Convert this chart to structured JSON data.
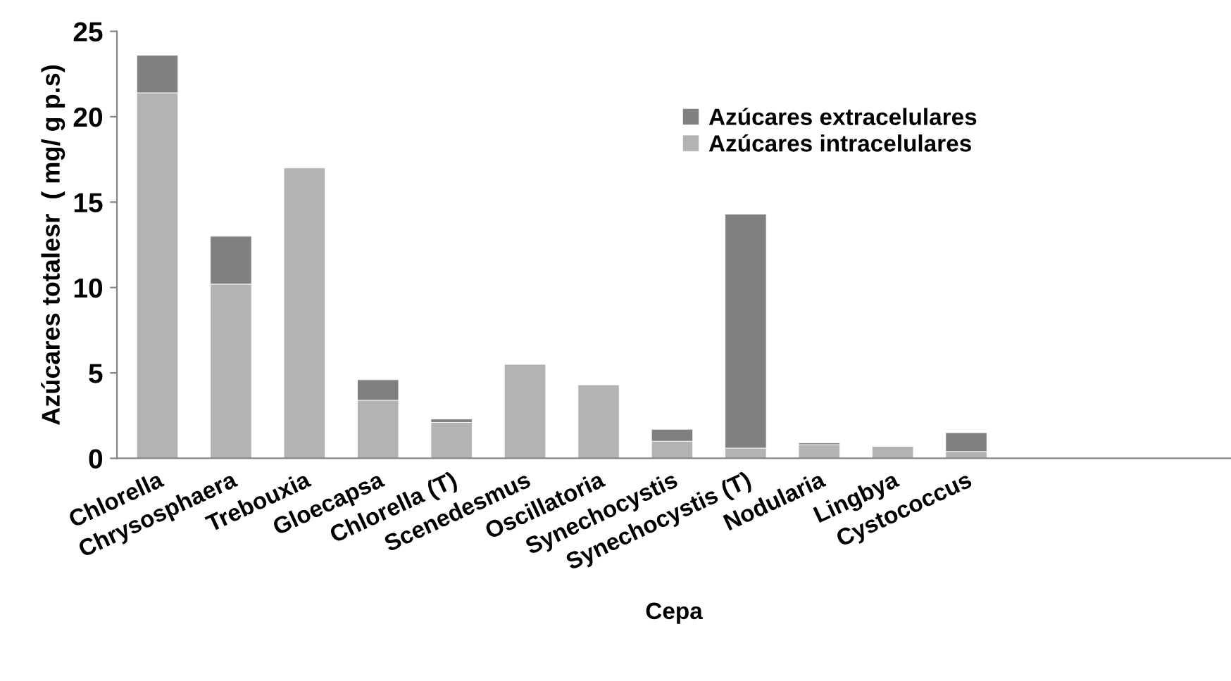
{
  "chart_data": {
    "type": "bar",
    "stacked": true,
    "xlabel": "Cepa",
    "ylabel": "Azúcares totalesr  ( mg/ g p.s)",
    "categories": [
      "Chlorella",
      "Chrysosphaera",
      "Trebouxia",
      "Gloecapsa",
      "Chlorella (T)",
      "Scenedesmus",
      "Oscillatoria",
      "Synechocystis",
      "Synechocystis (T)",
      "Nodularia",
      "Lingbya",
      "Cystococcus",
      null,
      null,
      null
    ],
    "series": [
      {
        "name": "Azúcares intracelulares",
        "color": "#b3b3b3",
        "values": [
          21.4,
          10.2,
          17.0,
          3.4,
          2.1,
          5.5,
          4.3,
          1.0,
          0.6,
          0.8,
          0.7,
          0.4,
          null,
          null,
          null
        ]
      },
      {
        "name": "Azúcares extracelulares",
        "color": "#808080",
        "values": [
          2.2,
          2.8,
          null,
          1.2,
          0.2,
          null,
          null,
          0.7,
          13.7,
          0.1,
          null,
          1.1,
          null,
          null,
          null
        ]
      }
    ],
    "ylim": [
      0,
      25
    ],
    "yticks": [
      0,
      5,
      10,
      15,
      20,
      25
    ],
    "grid": false,
    "legend": "top"
  }
}
